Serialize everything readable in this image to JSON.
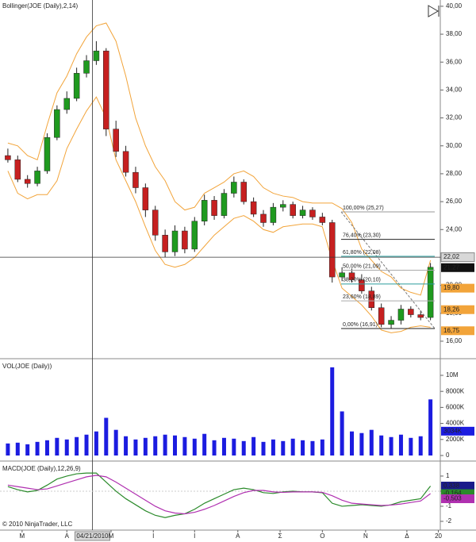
{
  "chart_data": [
    {
      "type": "candlestick",
      "title": "Bollinger(JOE (Daily),2,14)",
      "xlim": [
        -0.8,
        44
      ],
      "xticks": [
        {
          "value": 1.45,
          "label": "M"
        },
        {
          "value": 6,
          "label": "A"
        },
        {
          "value": 10.5,
          "label": "M"
        },
        {
          "value": 14.8,
          "label": "Ι"
        },
        {
          "value": 19,
          "label": "Ι"
        },
        {
          "value": 23.4,
          "label": "A"
        },
        {
          "value": 27.7,
          "label": "Σ"
        },
        {
          "value": 32,
          "label": "O"
        },
        {
          "value": 36.4,
          "label": "N"
        },
        {
          "value": 40.6,
          "label": "Δ"
        },
        {
          "value": 43.8,
          "label": "20"
        }
      ],
      "ylim": [
        14.86,
        40.45
      ],
      "yticks": [
        {
          "value": 16,
          "label": "16,00"
        },
        {
          "value": 18,
          "label": "18,00"
        },
        {
          "value": 20,
          "label": "20,00"
        },
        {
          "value": 22,
          "label": "22,00"
        },
        {
          "value": 24,
          "label": "24,00"
        },
        {
          "value": 26,
          "label": "26,00"
        },
        {
          "value": 28,
          "label": "28,00"
        },
        {
          "value": 30,
          "label": "30,00"
        },
        {
          "value": 32,
          "label": "32,00"
        },
        {
          "value": 34,
          "label": "34,00"
        },
        {
          "value": 36,
          "label": "36,00"
        },
        {
          "value": 38,
          "label": "38,00"
        },
        {
          "value": 40,
          "label": "40,00"
        }
      ],
      "open": [
        29.3,
        29.0,
        27.6,
        27.3,
        28.2,
        30.6,
        32.6,
        33.4,
        35.2,
        36.1,
        36.8,
        31.2,
        29.6,
        28.1,
        27.0,
        25.4,
        23.6,
        22.4,
        23.9,
        22.6,
        24.6,
        26.1,
        25.0,
        26.6,
        27.4,
        26.0,
        25.1,
        24.5,
        25.6,
        25.8,
        25.0,
        25.4,
        24.9,
        24.5,
        20.6,
        20.9,
        20.4,
        19.6,
        18.4,
        17.2,
        17.5,
        18.3,
        17.9,
        17.7
      ],
      "high": [
        29.8,
        29.3,
        27.9,
        28.5,
        30.9,
        32.9,
        33.9,
        35.6,
        36.5,
        37.5,
        37.0,
        31.8,
        30.0,
        28.5,
        27.3,
        25.7,
        24.0,
        24.3,
        24.2,
        24.9,
        26.5,
        26.4,
        26.9,
        27.8,
        27.6,
        26.3,
        25.4,
        25.9,
        26.1,
        26.0,
        25.7,
        25.6,
        25.2,
        24.7,
        21.3,
        21.2,
        20.8,
        19.9,
        18.7,
        17.8,
        18.6,
        18.5,
        18.2,
        21.6
      ],
      "low": [
        28.8,
        27.4,
        27.0,
        27.1,
        28.0,
        30.4,
        32.3,
        33.2,
        34.9,
        35.8,
        30.7,
        29.2,
        27.8,
        26.6,
        24.9,
        23.2,
        22.0,
        22.1,
        22.3,
        22.4,
        24.3,
        24.7,
        24.8,
        26.3,
        25.8,
        24.9,
        24.2,
        24.3,
        25.3,
        24.8,
        24.8,
        24.7,
        24.3,
        20.2,
        20.3,
        20.2,
        19.4,
        18.2,
        17.0,
        16.9,
        17.2,
        17.7,
        17.5,
        17.5
      ],
      "close": [
        29.0,
        27.6,
        27.3,
        28.2,
        30.6,
        32.6,
        33.4,
        35.2,
        36.1,
        36.8,
        31.2,
        29.6,
        28.1,
        27.0,
        25.4,
        23.6,
        22.4,
        23.9,
        22.6,
        24.6,
        26.1,
        25.0,
        26.6,
        27.4,
        26.0,
        25.1,
        24.5,
        25.6,
        25.8,
        25.0,
        25.4,
        24.9,
        24.5,
        20.6,
        20.9,
        20.4,
        19.6,
        18.4,
        17.2,
        17.5,
        18.3,
        17.9,
        17.7,
        21.3
      ],
      "up_color": "#1f9a1f",
      "down_color": "#c62020",
      "bands_upper": [
        30.2,
        30.0,
        29.3,
        29.0,
        31.5,
        33.8,
        35.0,
        36.6,
        37.8,
        38.6,
        38.8,
        37.5,
        35.0,
        32.0,
        30.0,
        28.5,
        27.5,
        26.0,
        25.4,
        25.6,
        26.6,
        27.0,
        27.4,
        28.0,
        28.2,
        27.8,
        27.0,
        26.6,
        26.4,
        26.3,
        26.0,
        25.9,
        25.9,
        25.9,
        25.5,
        24.5,
        22.6,
        21.8,
        21.0,
        20.6,
        19.8,
        19.5,
        19.3,
        21.8
      ],
      "bands_lower": [
        28.2,
        26.6,
        26.2,
        26.5,
        26.5,
        27.5,
        29.8,
        31.2,
        32.5,
        33.5,
        32.0,
        29.0,
        27.5,
        26.0,
        24.2,
        22.5,
        21.5,
        21.3,
        21.5,
        22.0,
        22.8,
        23.6,
        24.2,
        24.8,
        25.0,
        24.6,
        24.0,
        23.8,
        24.2,
        24.3,
        24.4,
        24.4,
        24.2,
        21.8,
        19.8,
        19.2,
        18.6,
        17.8,
        16.8,
        16.6,
        16.7,
        17.0,
        17.1,
        17.0
      ],
      "band_color": "#f2a43a",
      "fib_levels": [
        {
          "value": 25.27,
          "label": "100,00% (25,27)",
          "color": "#999999"
        },
        {
          "value": 23.3,
          "label": "76,40% (23,30)",
          "color": "#222222"
        },
        {
          "value": 22.08,
          "label": "61,80% (22,08)",
          "color": "#2a9d9d"
        },
        {
          "value": 21.09,
          "label": "50,00% (21,09)",
          "color": "#aaaaaa"
        },
        {
          "value": 20.1,
          "label": "38,20% (20,10)",
          "color": "#2a9d9d"
        },
        {
          "value": 18.89,
          "label": "23,60% (18,89)",
          "color": "#aaaaaa"
        },
        {
          "value": 16.91,
          "label": "0,00% (16,91)",
          "color": "#222222"
        }
      ],
      "price_tags": [
        {
          "value": 21.27,
          "label": "21,27",
          "color": "#111111"
        },
        {
          "value": 19.8,
          "label": "19,80",
          "color": "#f2a43a"
        },
        {
          "value": 18.26,
          "label": "18,26",
          "color": "#f2a43a"
        },
        {
          "value": 16.75,
          "label": "16,75",
          "color": "#f2a43a"
        }
      ],
      "crosshair": {
        "x": {
          "value": 8.6,
          "label": "04/21/2010"
        },
        "y": {
          "value": 22.02,
          "label": "22,02"
        }
      }
    },
    {
      "type": "bar",
      "title": "VOL(JOE (Daily))",
      "values": [
        1500000,
        1600000,
        1400000,
        1700000,
        1900000,
        2200000,
        2000000,
        2300000,
        2600000,
        3000000,
        4700000,
        3200000,
        2400000,
        2000000,
        2200000,
        2400000,
        2600000,
        2500000,
        2300000,
        2100000,
        2700000,
        1900000,
        2200000,
        2100000,
        1800000,
        2300000,
        1700000,
        2000000,
        1800000,
        2100000,
        1900000,
        1800000,
        2000000,
        11000000,
        5500000,
        3000000,
        2800000,
        3200000,
        2500000,
        2300000,
        2600000,
        2200000,
        2400000,
        7000000
      ],
      "color": "#1c1ce0",
      "ylim": [
        -594000,
        11780000
      ],
      "yticks": [
        0,
        {
          "value": 2000000,
          "label": "2000K"
        },
        {
          "value": 4000000,
          "label": "4000K"
        },
        {
          "value": 6000000,
          "label": "6000K"
        },
        {
          "value": 8000000,
          "label": "8000K"
        },
        {
          "value": 10000000,
          "label": "10M"
        }
      ],
      "tags": [
        {
          "value": 3034000,
          "label": "3034K",
          "color": "#1c1ce0"
        }
      ]
    },
    {
      "type": "line",
      "title": "MACD(JOE (Daily),12,26,9)",
      "series": [
        {
          "color": "#2a8a2a",
          "values": [
            0.3,
            0.1,
            -0.05,
            0.05,
            0.4,
            0.8,
            1.0,
            1.15,
            1.2,
            1.2,
            0.6,
            0.0,
            -0.5,
            -0.9,
            -1.3,
            -1.6,
            -1.75,
            -1.6,
            -1.5,
            -1.2,
            -0.8,
            -0.5,
            -0.2,
            0.1,
            0.2,
            0.1,
            -0.1,
            -0.15,
            -0.05,
            0.0,
            -0.05,
            -0.05,
            -0.1,
            -0.8,
            -1.0,
            -0.95,
            -0.9,
            -0.95,
            -1.0,
            -0.9,
            -0.7,
            -0.6,
            -0.5,
            0.34
          ]
        },
        {
          "color": "#b030b0",
          "values": [
            0.4,
            0.3,
            0.2,
            0.1,
            0.15,
            0.35,
            0.55,
            0.75,
            0.95,
            1.05,
            0.95,
            0.6,
            0.2,
            -0.2,
            -0.6,
            -1.0,
            -1.3,
            -1.45,
            -1.5,
            -1.4,
            -1.2,
            -0.95,
            -0.65,
            -0.35,
            -0.1,
            0.05,
            0.05,
            -0.05,
            -0.08,
            -0.05,
            -0.05,
            -0.05,
            -0.08,
            -0.3,
            -0.6,
            -0.8,
            -0.85,
            -0.9,
            -0.95,
            -0.92,
            -0.85,
            -0.75,
            -0.65,
            -0.16
          ]
        }
      ],
      "ylim": [
        -2.58,
        1.89
      ],
      "yticks": [
        -2,
        -1,
        0,
        1
      ],
      "tags": [
        {
          "value": 0.338,
          "label": "0,338",
          "color": "#1a1a8a"
        },
        {
          "value": -0.164,
          "label": "-0,164",
          "color": "#2a8a2a"
        },
        {
          "value": -0.503,
          "label": "-0,503",
          "color": "#b030b0"
        }
      ]
    }
  ],
  "footer": "© 2010 NinjaTrader, LLC"
}
